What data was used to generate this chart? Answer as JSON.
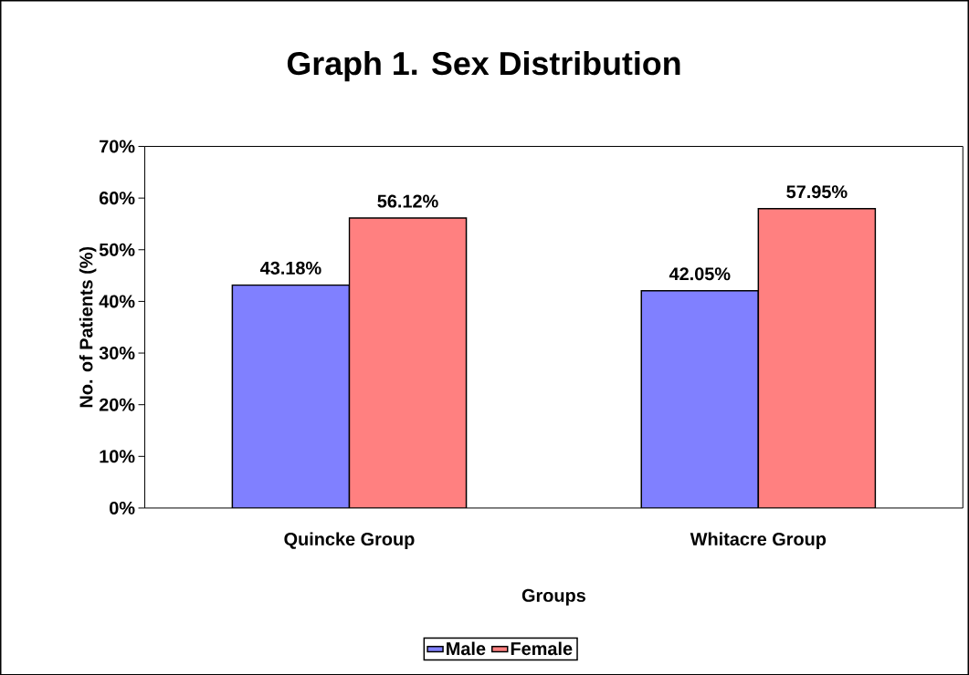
{
  "chart_data": {
    "type": "bar",
    "title": "Graph 1. Sex Distribution",
    "xlabel": "Groups",
    "ylabel": "No. of Patients (%)",
    "categories": [
      "Quincke Group",
      "Whitacre Group"
    ],
    "series": [
      {
        "name": "Male",
        "color": "#8080ff",
        "values": [
          43.18,
          42.05
        ],
        "value_labels": [
          "43.18%",
          "42.05%"
        ]
      },
      {
        "name": "Female",
        "color": "#ff8080",
        "values": [
          56.12,
          57.95
        ],
        "value_labels": [
          "56.12%",
          "57.95%"
        ]
      }
    ],
    "ylim": [
      0,
      70
    ],
    "yticks": [
      {
        "value": 0,
        "label": "0%"
      },
      {
        "value": 10,
        "label": "10%"
      },
      {
        "value": 20,
        "label": "20%"
      },
      {
        "value": 30,
        "label": "30%"
      },
      {
        "value": 40,
        "label": "40%"
      },
      {
        "value": 50,
        "label": "50%"
      },
      {
        "value": 60,
        "label": "60%"
      },
      {
        "value": 70,
        "label": "70%"
      }
    ],
    "grid": false,
    "legend": "bottom"
  }
}
